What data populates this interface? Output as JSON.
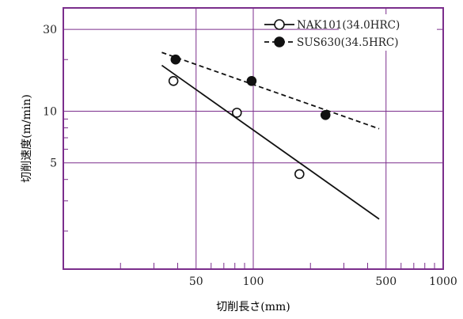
{
  "chart_data": {
    "type": "scatter",
    "xscale": "log",
    "yscale": "log",
    "xlim": [
      10,
      1000
    ],
    "ylim": [
      1.2,
      40
    ],
    "xlabel": "切削長さ(mm)",
    "ylabel": "切削速度(m/min)",
    "xticks": [
      50,
      100,
      500,
      1000
    ],
    "yticks": [
      5,
      10,
      30
    ],
    "xtick_labels": [
      "50",
      "100",
      "500",
      "1000"
    ],
    "ytick_labels": [
      "5",
      "10",
      "30"
    ],
    "grid": true,
    "legend_position": "top-right",
    "series": [
      {
        "name": "NAK101(34.0HRC)",
        "marker": "open-circle",
        "line": "solid",
        "points": [
          {
            "x": 38,
            "y": 15
          },
          {
            "x": 82,
            "y": 9.8
          },
          {
            "x": 175,
            "y": 4.3
          }
        ],
        "fit_line": [
          {
            "x": 33,
            "y": 18.5
          },
          {
            "x": 460,
            "y": 2.35
          }
        ]
      },
      {
        "name": "SUS630(34.5HRC)",
        "marker": "filled-circle",
        "line": "dashed",
        "points": [
          {
            "x": 39,
            "y": 20
          },
          {
            "x": 98,
            "y": 15
          },
          {
            "x": 240,
            "y": 9.5
          }
        ],
        "fit_line": [
          {
            "x": 33,
            "y": 22
          },
          {
            "x": 460,
            "y": 7.9
          }
        ]
      }
    ]
  },
  "colors": {
    "grid": "#7b2e8c",
    "series": "#111111",
    "text": "#222222"
  }
}
